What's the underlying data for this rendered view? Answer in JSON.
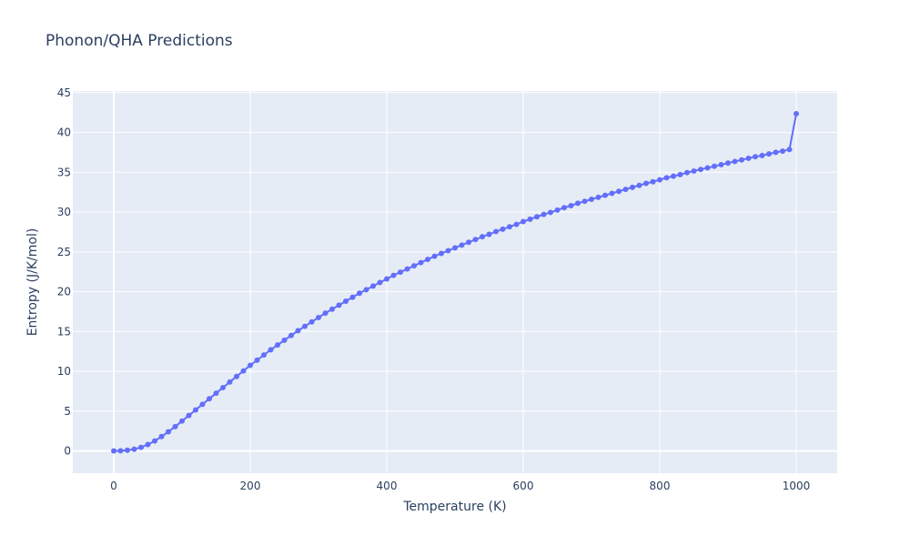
{
  "chart_data": {
    "type": "line",
    "title": "Phonon/QHA Predictions",
    "xlabel": "Temperature (K)",
    "ylabel": "Entropy (J/K/mol)",
    "xlim": [
      -60,
      1060
    ],
    "ylim": [
      -2.8,
      45.2
    ],
    "x_ticks": [
      0,
      200,
      400,
      600,
      800,
      1000
    ],
    "y_ticks": [
      0,
      5,
      10,
      15,
      20,
      25,
      30,
      35,
      40,
      45
    ],
    "grid": true,
    "legend": "none",
    "series": [
      {
        "color": "#636efa",
        "mode": "lines+markers",
        "x": [
          0,
          10,
          20,
          30,
          40,
          50,
          60,
          70,
          80,
          90,
          100,
          110,
          120,
          130,
          140,
          150,
          160,
          170,
          180,
          190,
          200,
          210,
          220,
          230,
          240,
          250,
          260,
          270,
          280,
          290,
          300,
          310,
          320,
          330,
          340,
          350,
          360,
          370,
          380,
          390,
          400,
          410,
          420,
          430,
          440,
          450,
          460,
          470,
          480,
          490,
          500,
          510,
          520,
          530,
          540,
          550,
          560,
          570,
          580,
          590,
          600,
          610,
          620,
          630,
          640,
          650,
          660,
          670,
          680,
          690,
          700,
          710,
          720,
          730,
          740,
          750,
          760,
          770,
          780,
          790,
          800,
          810,
          820,
          830,
          840,
          850,
          860,
          870,
          880,
          890,
          900,
          910,
          920,
          930,
          940,
          950,
          960,
          970,
          980,
          990,
          1000
        ],
        "y": [
          0,
          0.02,
          0.08,
          0.22,
          0.45,
          0.8,
          1.25,
          1.8,
          2.4,
          3.05,
          3.75,
          4.45,
          5.15,
          5.85,
          6.55,
          7.25,
          7.95,
          8.65,
          9.35,
          10.05,
          10.75,
          11.4,
          12.05,
          12.7,
          13.3,
          13.9,
          14.5,
          15.1,
          15.65,
          16.2,
          16.75,
          17.3,
          17.8,
          18.3,
          18.8,
          19.3,
          19.8,
          20.25,
          20.7,
          21.15,
          21.6,
          22.05,
          22.45,
          22.85,
          23.25,
          23.65,
          24.05,
          24.45,
          24.8,
          25.15,
          25.5,
          25.85,
          26.2,
          26.55,
          26.9,
          27.2,
          27.55,
          27.85,
          28.15,
          28.45,
          28.8,
          29.1,
          29.4,
          29.7,
          29.95,
          30.25,
          30.55,
          30.8,
          31.1,
          31.35,
          31.6,
          31.85,
          32.1,
          32.35,
          32.6,
          32.85,
          33.1,
          33.35,
          33.6,
          33.8,
          34.05,
          34.3,
          34.5,
          34.7,
          34.95,
          35.15,
          35.35,
          35.55,
          35.75,
          35.95,
          36.15,
          36.35,
          36.55,
          36.75,
          36.95,
          37.1,
          37.3,
          37.5,
          37.65,
          37.85,
          42.35
        ]
      }
    ]
  }
}
